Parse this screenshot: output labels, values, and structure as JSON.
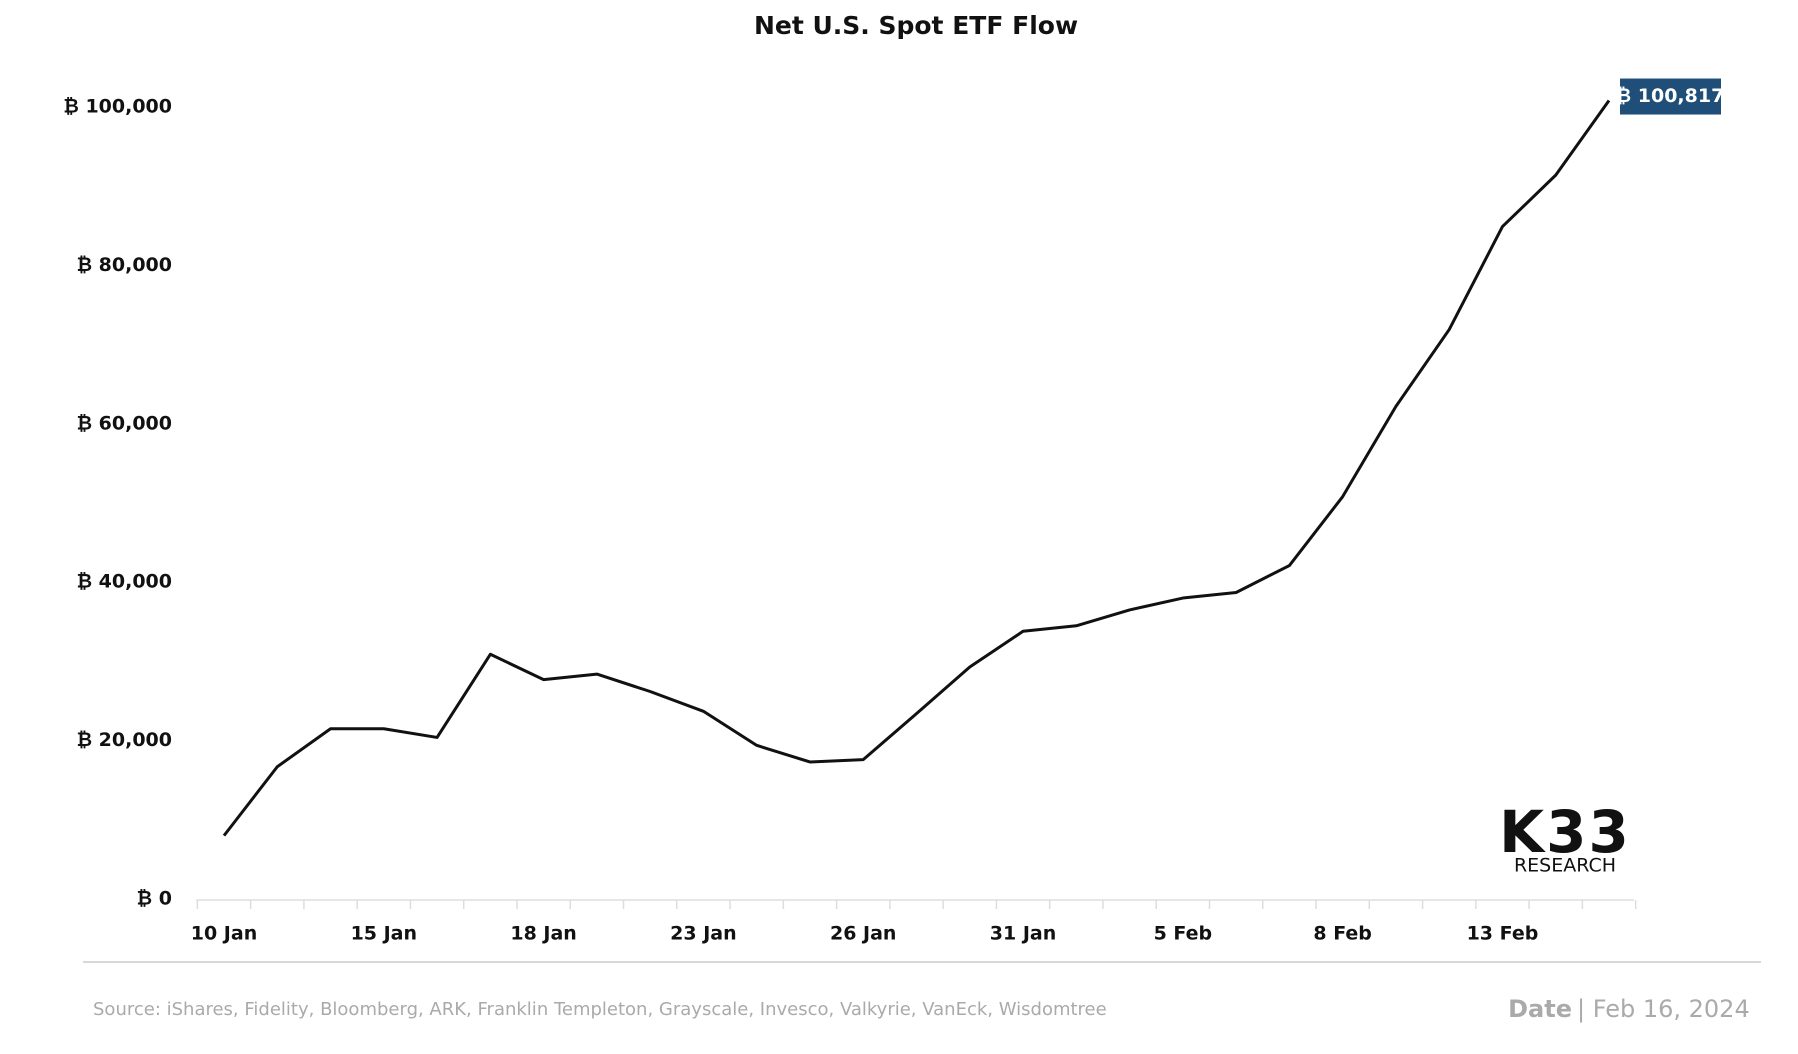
{
  "chart_data": {
    "type": "line",
    "title": "Net U.S. Spot ETF Flow",
    "categories": [
      "10 Jan",
      null,
      null,
      "15 Jan",
      null,
      null,
      "18 Jan",
      null,
      null,
      "23 Jan",
      null,
      null,
      "26 Jan",
      null,
      null,
      "31 Jan",
      null,
      null,
      "5 Feb",
      null,
      null,
      "8 Feb",
      null,
      null,
      "13 Feb",
      null,
      null
    ],
    "values": [
      8000,
      16700,
      21500,
      21500,
      20400,
      30900,
      27700,
      28400,
      26200,
      23700,
      19400,
      17300,
      17600,
      23400,
      29300,
      33800,
      34500,
      36500,
      38000,
      38700,
      42100,
      50800,
      62200,
      71900,
      84900,
      91400,
      100817
    ],
    "value_labels": [
      null,
      null,
      null,
      null,
      null,
      null,
      null,
      null,
      null,
      null,
      null,
      null,
      null,
      null,
      null,
      null,
      null,
      null,
      null,
      null,
      null,
      null,
      null,
      null,
      null,
      null,
      "₿ 100,817"
    ],
    "color": "#111111",
    "label_color": "#1f4e79",
    "ylim": [
      0,
      100000
    ],
    "yticks": [
      {
        "value": 0,
        "label": "₿ 0"
      },
      {
        "value": 20000,
        "label": "₿ 20,000"
      },
      {
        "value": 40000,
        "label": "₿ 40,000"
      },
      {
        "value": 60000,
        "label": "₿ 60,000"
      },
      {
        "value": 80000,
        "label": "₿ 80,000"
      },
      {
        "value": 100000,
        "label": "₿ 100,000"
      }
    ],
    "grid": false,
    "source": "Source:  iShares, Fidelity, Bloomberg, ARK, Franklin Templeton, Grayscale, Invesco, Valkyrie, VanEck, Wisdomtree",
    "date_label": "Date",
    "date": "| Feb 16, 2024",
    "logo": "K33",
    "logo_subtitle": "RESEARCH"
  }
}
